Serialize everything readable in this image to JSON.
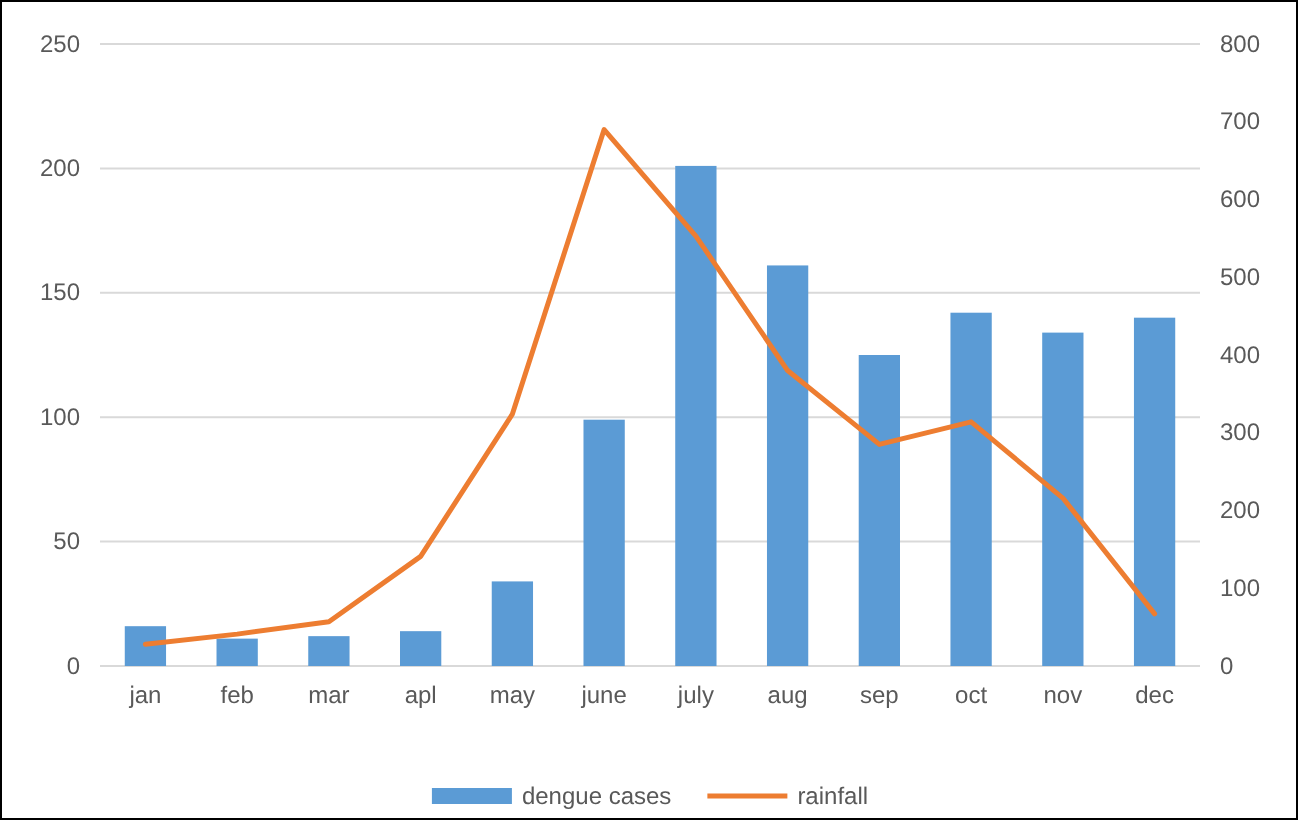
{
  "chart_data": {
    "type": "bar",
    "categories": [
      "jan",
      "feb",
      "mar",
      "apl",
      "may",
      "june",
      "july",
      "aug",
      "sep",
      "oct",
      "nov",
      "dec"
    ],
    "series": [
      {
        "name": "dengue cases",
        "color": "#5b9bd5",
        "values": [
          16,
          11,
          12,
          14,
          34,
          99,
          201,
          161,
          125,
          142,
          134,
          140
        ]
      },
      {
        "name": "rainfall",
        "type": "line",
        "axis": "y2",
        "color": "#ed7d31",
        "values": [
          28,
          41,
          57,
          141,
          324,
          690,
          553,
          380,
          285,
          314,
          216,
          67
        ]
      }
    ],
    "ylim": [
      0,
      250
    ],
    "yticks": [
      0,
      50,
      100,
      150,
      200,
      250
    ],
    "y2lim": [
      0,
      800
    ],
    "y2ticks": [
      0,
      100,
      200,
      300,
      400,
      500,
      600,
      700,
      800
    ],
    "grid": "y",
    "legend": "bottom",
    "marker": "none",
    "line_style": "solid"
  }
}
